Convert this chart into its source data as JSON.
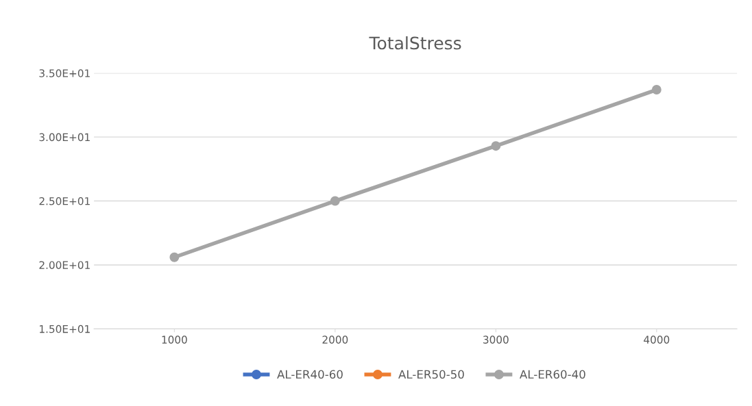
{
  "chart_data": {
    "type": "line",
    "title": "TotalStress",
    "categories": [
      "1000",
      "2000",
      "3000",
      "4000"
    ],
    "series": [
      {
        "name": "AL-ER40-60",
        "color": "#4472c4",
        "values": [
          null,
          null,
          null,
          null
        ]
      },
      {
        "name": "AL-ER50-50",
        "color": "#ed7d31",
        "values": [
          null,
          null,
          null,
          null
        ]
      },
      {
        "name": "AL-ER60-40",
        "color": "#a5a5a5",
        "values": [
          20.6,
          25.0,
          29.3,
          33.7
        ]
      }
    ],
    "ylim": [
      15,
      35
    ],
    "yticks": [
      {
        "value": 15,
        "label": "1.50E+01"
      },
      {
        "value": 20,
        "label": "2.00E+01"
      },
      {
        "value": 25,
        "label": "2.50E+01"
      },
      {
        "value": 30,
        "label": "3.00E+01"
      },
      {
        "value": 35,
        "label": "3.50E+01"
      }
    ],
    "grid": "y",
    "legend": "bottom",
    "marker": "circle",
    "line_style": "solid"
  }
}
